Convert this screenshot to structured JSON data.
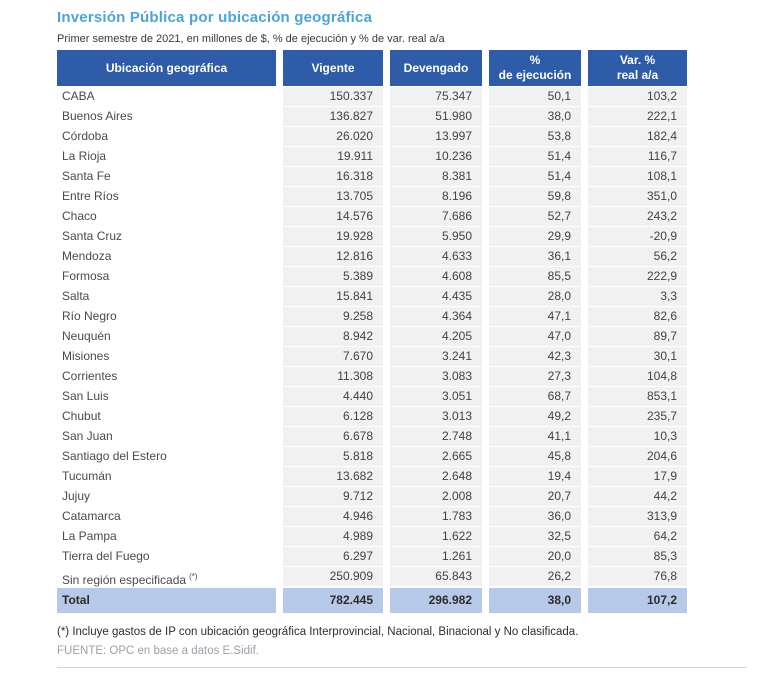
{
  "colors": {
    "title_text": "#4BA5DA",
    "header_bg": "#2E5CA8",
    "header_text": "#FFFFFF",
    "numeric_cell_bg": "#F1F1F2",
    "total_row_bg": "#B7C9E8"
  },
  "chart_data": {
    "type": "table",
    "title": "Inversión Pública por ubicación geográfica",
    "subtitle": "Primer semestre de 2021, en millones de $, % de ejecución y % de var. real a/a",
    "columns": [
      "Ubicación geográfica",
      "Vigente",
      "Devengado",
      "%\nde ejecución",
      "Var. %\nreal a/a"
    ],
    "rows": [
      {
        "label": "CABA",
        "values": [
          "150.337",
          "75.347",
          "50,1",
          "103,2"
        ]
      },
      {
        "label": "Buenos Aires",
        "values": [
          "136.827",
          "51.980",
          "38,0",
          "222,1"
        ]
      },
      {
        "label": "Córdoba",
        "values": [
          "26.020",
          "13.997",
          "53,8",
          "182,4"
        ]
      },
      {
        "label": "La Rioja",
        "values": [
          "19.911",
          "10.236",
          "51,4",
          "116,7"
        ]
      },
      {
        "label": "Santa Fe",
        "values": [
          "16.318",
          "8.381",
          "51,4",
          "108,1"
        ]
      },
      {
        "label": "Entre Ríos",
        "values": [
          "13.705",
          "8.196",
          "59,8",
          "351,0"
        ]
      },
      {
        "label": "Chaco",
        "values": [
          "14.576",
          "7.686",
          "52,7",
          "243,2"
        ]
      },
      {
        "label": "Santa Cruz",
        "values": [
          "19.928",
          "5.950",
          "29,9",
          "-20,9"
        ]
      },
      {
        "label": "Mendoza",
        "values": [
          "12.816",
          "4.633",
          "36,1",
          "56,2"
        ]
      },
      {
        "label": "Formosa",
        "values": [
          "5.389",
          "4.608",
          "85,5",
          "222,9"
        ]
      },
      {
        "label": "Salta",
        "values": [
          "15.841",
          "4.435",
          "28,0",
          "3,3"
        ]
      },
      {
        "label": "Río Negro",
        "values": [
          "9.258",
          "4.364",
          "47,1",
          "82,6"
        ]
      },
      {
        "label": "Neuquén",
        "values": [
          "8.942",
          "4.205",
          "47,0",
          "89,7"
        ]
      },
      {
        "label": "Misiones",
        "values": [
          "7.670",
          "3.241",
          "42,3",
          "30,1"
        ]
      },
      {
        "label": "Corrientes",
        "values": [
          "11.308",
          "3.083",
          "27,3",
          "104,8"
        ]
      },
      {
        "label": "San Luis",
        "values": [
          "4.440",
          "3.051",
          "68,7",
          "853,1"
        ]
      },
      {
        "label": "Chubut",
        "values": [
          "6.128",
          "3.013",
          "49,2",
          "235,7"
        ]
      },
      {
        "label": "San Juan",
        "values": [
          "6.678",
          "2.748",
          "41,1",
          "10,3"
        ]
      },
      {
        "label": "Santiago del Estero",
        "values": [
          "5.818",
          "2.665",
          "45,8",
          "204,6"
        ]
      },
      {
        "label": "Tucumán",
        "values": [
          "13.682",
          "2.648",
          "19,4",
          "17,9"
        ]
      },
      {
        "label": "Jujuy",
        "values": [
          "9.712",
          "2.008",
          "20,7",
          "44,2"
        ]
      },
      {
        "label": "Catamarca",
        "values": [
          "4.946",
          "1.783",
          "36,0",
          "313,9"
        ]
      },
      {
        "label": "La Pampa",
        "values": [
          "4.989",
          "1.622",
          "32,5",
          "64,2"
        ]
      },
      {
        "label": "Tierra del Fuego",
        "values": [
          "6.297",
          "1.261",
          "20,0",
          "85,3"
        ]
      },
      {
        "label": "Sin región especificada",
        "marker": "(*)",
        "values": [
          "250.909",
          "65.843",
          "26,2",
          "76,8"
        ]
      }
    ],
    "total_row": {
      "label": "Total",
      "values": [
        "782.445",
        "296.982",
        "38,0",
        "107,2"
      ]
    },
    "footnote": "(*) Incluye gastos de IP con ubicación geográfica Interprovincial, Nacional, Binacional y No clasificada.",
    "source": "FUENTE: OPC en base a datos E.Sidif."
  }
}
